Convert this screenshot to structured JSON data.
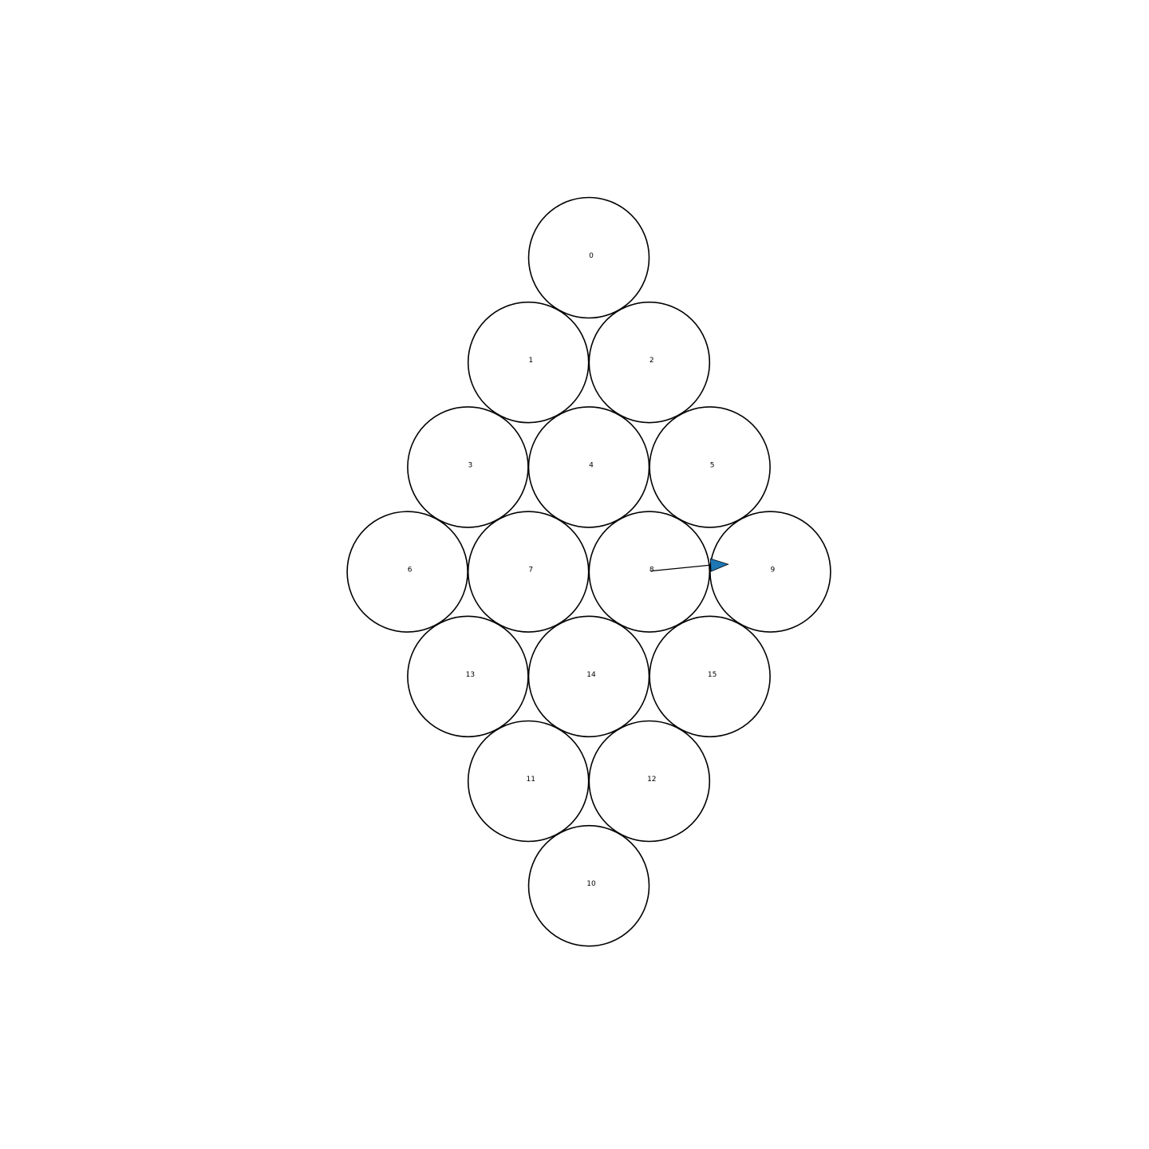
{
  "nodes": [
    {
      "id": "0",
      "row": 0,
      "col": 0
    },
    {
      "id": "1",
      "row": 1,
      "col": -1
    },
    {
      "id": "2",
      "row": 1,
      "col": 1
    },
    {
      "id": "3",
      "row": 2,
      "col": -2
    },
    {
      "id": "4",
      "row": 2,
      "col": 0
    },
    {
      "id": "5",
      "row": 2,
      "col": 2
    },
    {
      "id": "6",
      "row": 3,
      "col": -3
    },
    {
      "id": "7",
      "row": 3,
      "col": -1
    },
    {
      "id": "8",
      "row": 3,
      "col": 1
    },
    {
      "id": "9",
      "row": 3,
      "col": 3
    },
    {
      "id": "13",
      "row": 4,
      "col": -2
    },
    {
      "id": "14",
      "row": 4,
      "col": 0
    },
    {
      "id": "15",
      "row": 4,
      "col": 2
    },
    {
      "id": "11",
      "row": 5,
      "col": -1
    },
    {
      "id": "12",
      "row": 5,
      "col": 1
    },
    {
      "id": "10",
      "row": 6,
      "col": 0
    }
  ],
  "pointer": {
    "from": "8",
    "to": "9",
    "color": "#1f77b4"
  }
}
